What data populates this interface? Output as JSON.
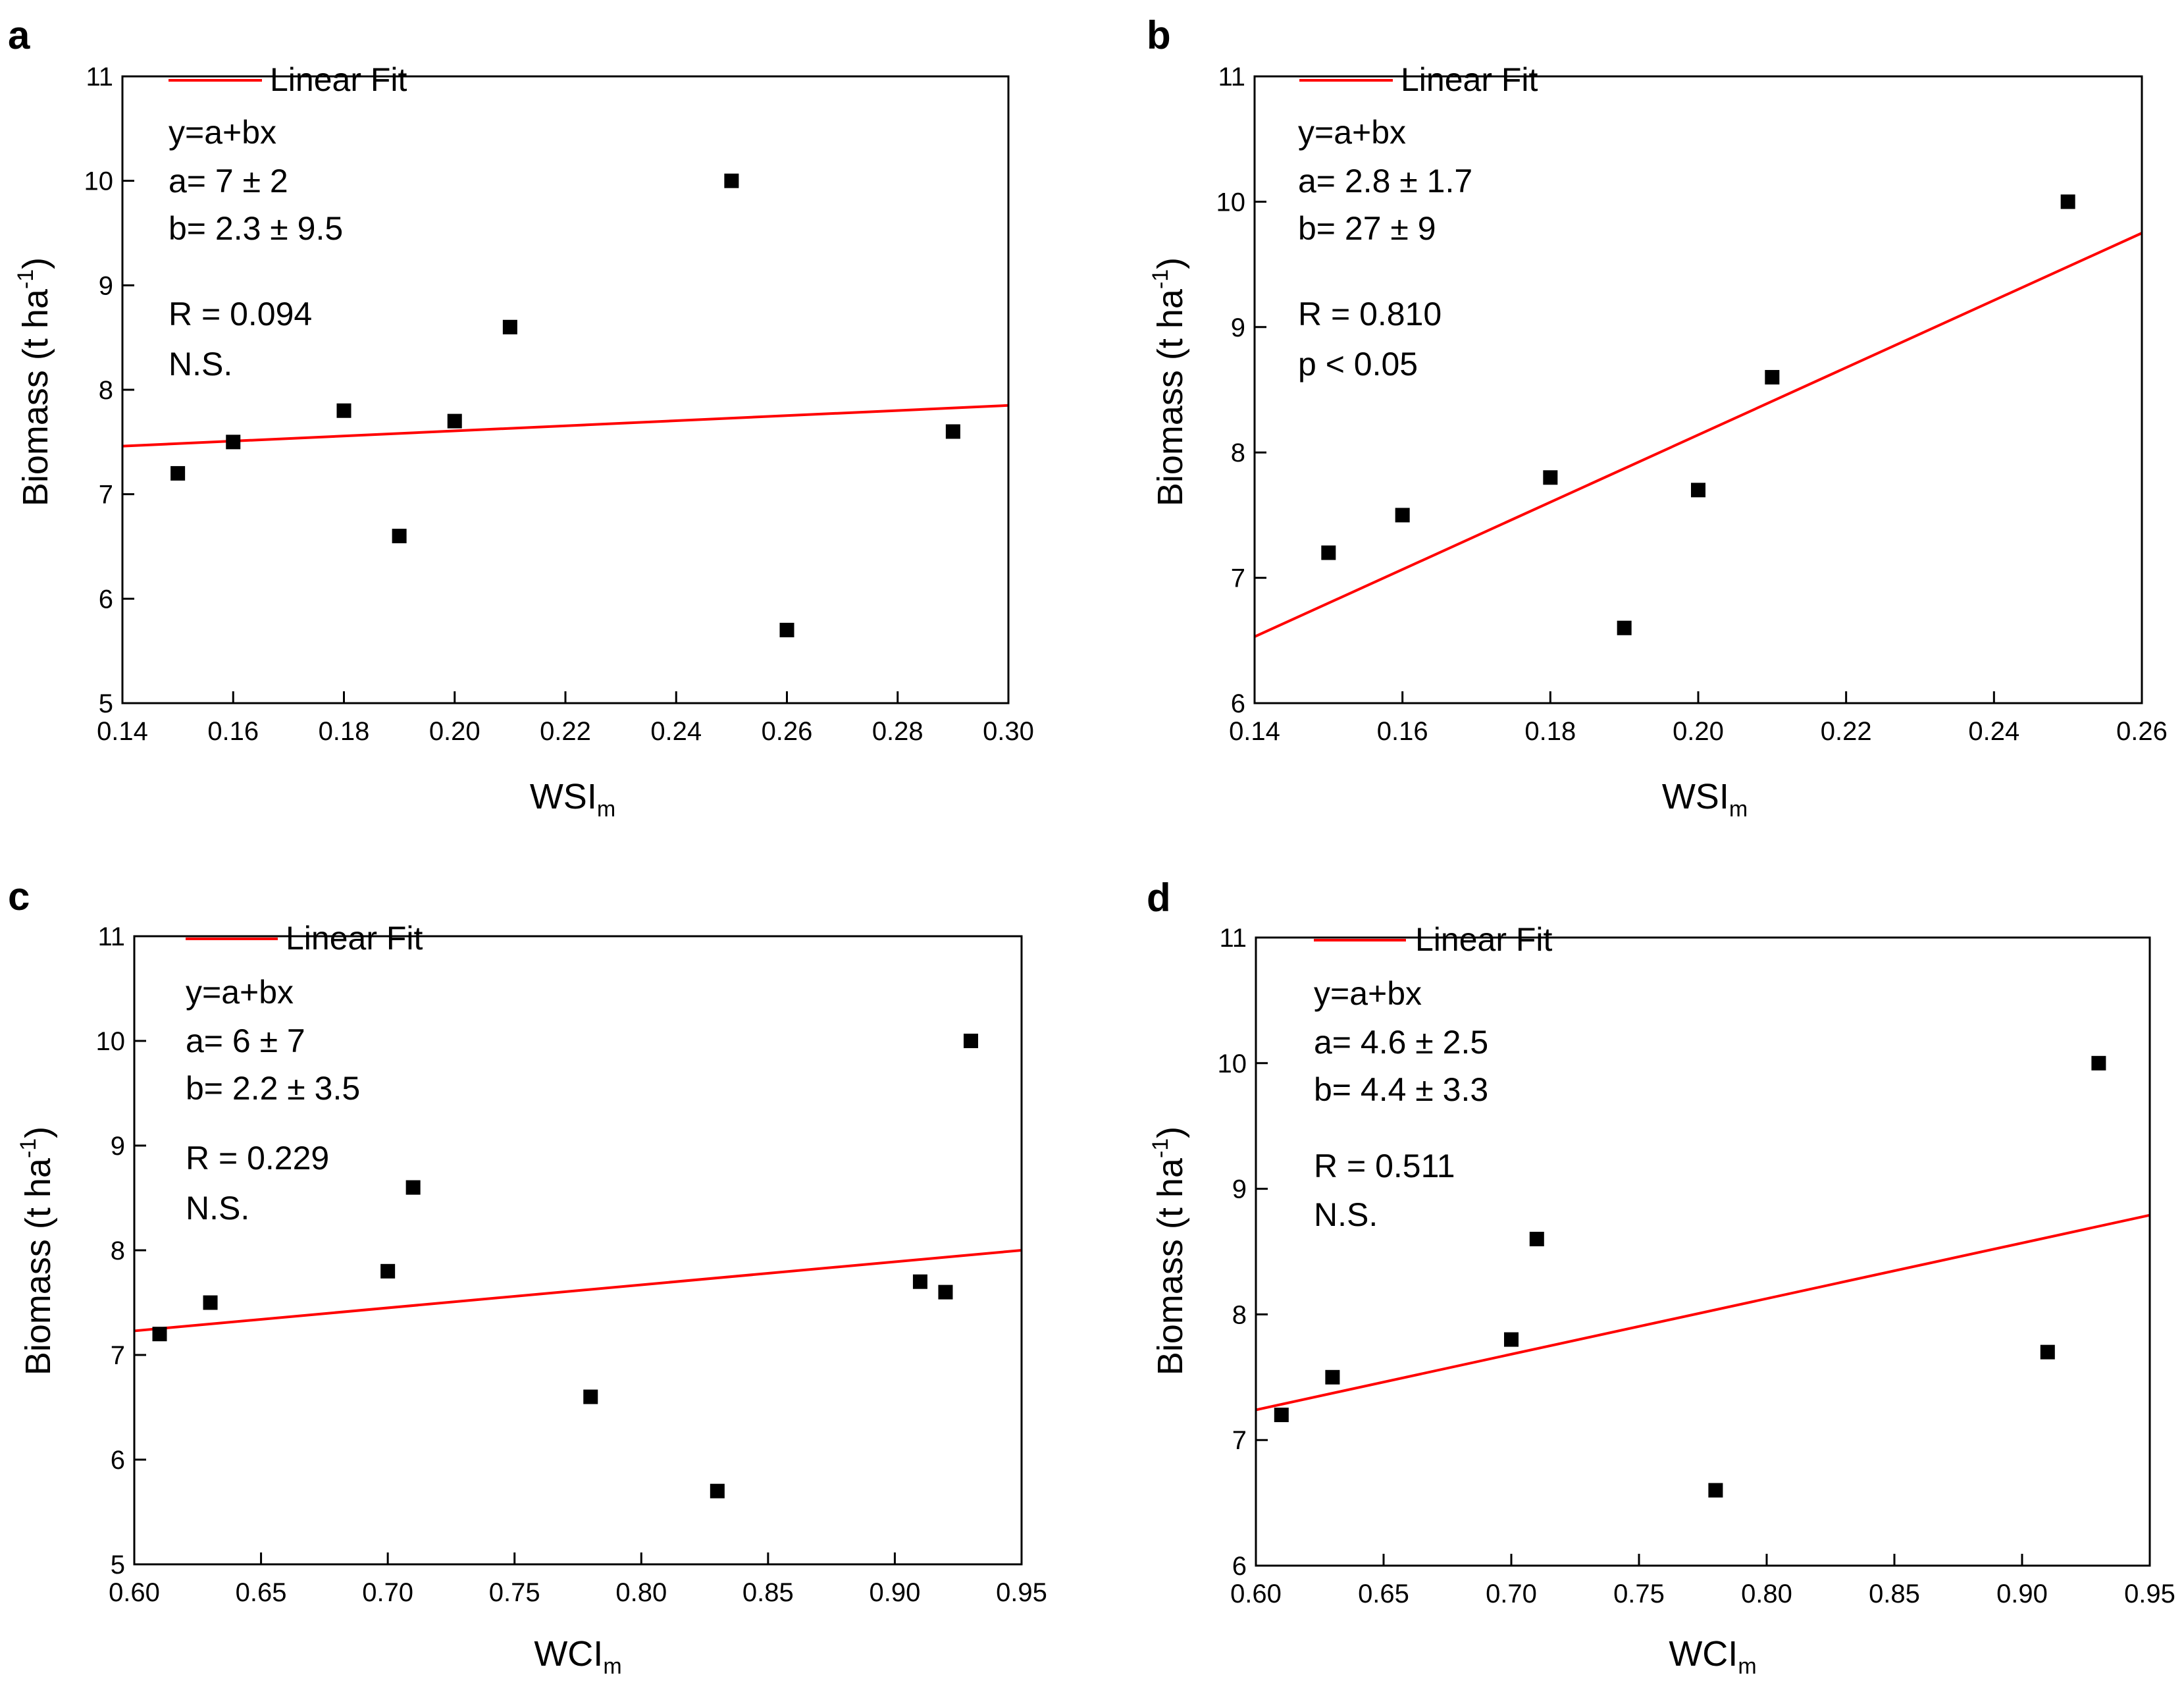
{
  "chart_data": [
    {
      "panel": "a",
      "type": "scatter",
      "xlabel": "WSI",
      "xlabel_sub": "m",
      "ylabel": "Biomass (t ha",
      "ylabel_sup": "-1",
      "ylabel_close": ")",
      "xlim": [
        0.14,
        0.3
      ],
      "ylim": [
        5,
        11
      ],
      "xticks": [
        0.14,
        0.16,
        0.18,
        0.2,
        0.22,
        0.24,
        0.26,
        0.28,
        0.3
      ],
      "xtick_labels": [
        "0.14",
        "0.16",
        "0.18",
        "0.20",
        "0.22",
        "0.24",
        "0.26",
        "0.28",
        "0.30"
      ],
      "yticks": [
        5,
        6,
        7,
        8,
        9,
        10,
        11
      ],
      "ytick_labels": [
        "5",
        "6",
        "7",
        "8",
        "9",
        "10",
        "11"
      ],
      "points": [
        [
          0.15,
          7.2
        ],
        [
          0.16,
          7.5
        ],
        [
          0.18,
          7.8
        ],
        [
          0.19,
          6.6
        ],
        [
          0.2,
          7.7
        ],
        [
          0.21,
          8.6
        ],
        [
          0.25,
          10.0
        ],
        [
          0.26,
          5.7
        ],
        [
          0.29,
          7.6
        ]
      ],
      "fit_line": [
        [
          0.14,
          7.46
        ],
        [
          0.3,
          7.85
        ]
      ],
      "legend": "Linear Fit",
      "annotations": [
        "y=a+bx",
        "a= 7 ± 2",
        "b= 2.3 ± 9.5",
        "R = 0.094",
        "N.S."
      ],
      "colors": {
        "fit": "#ff0000",
        "points": "#000000"
      }
    },
    {
      "panel": "b",
      "type": "scatter",
      "xlabel": "WSI",
      "xlabel_sub": "m",
      "ylabel": "Biomass (t ha",
      "ylabel_sup": "-1",
      "ylabel_close": ")",
      "xlim": [
        0.14,
        0.26
      ],
      "ylim": [
        6,
        11
      ],
      "xticks": [
        0.14,
        0.16,
        0.18,
        0.2,
        0.22,
        0.24,
        0.26
      ],
      "xtick_labels": [
        "0.14",
        "0.16",
        "0.18",
        "0.20",
        "0.22",
        "0.24",
        "0.26"
      ],
      "yticks": [
        6,
        7,
        8,
        9,
        10,
        11
      ],
      "ytick_labels": [
        "6",
        "7",
        "8",
        "9",
        "10",
        "11"
      ],
      "points": [
        [
          0.15,
          7.2
        ],
        [
          0.16,
          7.5
        ],
        [
          0.18,
          7.8
        ],
        [
          0.19,
          6.6
        ],
        [
          0.2,
          7.7
        ],
        [
          0.21,
          8.6
        ],
        [
          0.25,
          10.0
        ]
      ],
      "fit_line": [
        [
          0.14,
          6.53
        ],
        [
          0.26,
          9.75
        ]
      ],
      "legend": "Linear Fit",
      "annotations": [
        "y=a+bx",
        "a=  2.8 ± 1.7",
        "b=   27 ± 9",
        "R = 0.810",
        "p < 0.05"
      ],
      "colors": {
        "fit": "#ff0000",
        "points": "#000000"
      }
    },
    {
      "panel": "c",
      "type": "scatter",
      "xlabel": "WCI",
      "xlabel_sub": "m",
      "ylabel": "Biomass (t ha",
      "ylabel_sup": "-1",
      "ylabel_close": ")",
      "xlim": [
        0.6,
        0.95
      ],
      "ylim": [
        5,
        11
      ],
      "xticks": [
        0.6,
        0.65,
        0.7,
        0.75,
        0.8,
        0.85,
        0.9,
        0.95
      ],
      "xtick_labels": [
        "0.60",
        "0.65",
        "0.70",
        "0.75",
        "0.80",
        "0.85",
        "0.90",
        "0.95"
      ],
      "yticks": [
        5,
        6,
        7,
        8,
        9,
        10,
        11
      ],
      "ytick_labels": [
        "5",
        "6",
        "7",
        "8",
        "9",
        "10",
        "11"
      ],
      "points": [
        [
          0.61,
          7.2
        ],
        [
          0.63,
          7.5
        ],
        [
          0.7,
          7.8
        ],
        [
          0.71,
          8.6
        ],
        [
          0.78,
          6.6
        ],
        [
          0.83,
          5.7
        ],
        [
          0.91,
          7.7
        ],
        [
          0.92,
          7.6
        ],
        [
          0.93,
          10.0
        ]
      ],
      "fit_line": [
        [
          0.6,
          7.23
        ],
        [
          0.95,
          8.0
        ]
      ],
      "legend": "Linear Fit",
      "annotations": [
        "y=a+bx",
        "a= 6 ± 7",
        "b= 2.2 ± 3.5",
        "R = 0.229",
        "N.S."
      ],
      "colors": {
        "fit": "#ff0000",
        "points": "#000000"
      }
    },
    {
      "panel": "d",
      "type": "scatter",
      "xlabel": "WCI",
      "xlabel_sub": "m",
      "ylabel": "Biomass (t ha",
      "ylabel_sup": "-1",
      "ylabel_close": ")",
      "xlim": [
        0.6,
        0.95
      ],
      "ylim": [
        6,
        11
      ],
      "xticks": [
        0.6,
        0.65,
        0.7,
        0.75,
        0.8,
        0.85,
        0.9,
        0.95
      ],
      "xtick_labels": [
        "0.60",
        "0.65",
        "0.70",
        "0.75",
        "0.80",
        "0.85",
        "0.90",
        "0.95"
      ],
      "yticks": [
        6,
        7,
        8,
        9,
        10,
        11
      ],
      "ytick_labels": [
        "6",
        "7",
        "8",
        "9",
        "10",
        "11"
      ],
      "points": [
        [
          0.61,
          7.2
        ],
        [
          0.63,
          7.5
        ],
        [
          0.7,
          7.8
        ],
        [
          0.71,
          8.6
        ],
        [
          0.78,
          6.6
        ],
        [
          0.91,
          7.7
        ],
        [
          0.93,
          10.0
        ]
      ],
      "fit_line": [
        [
          0.6,
          7.24
        ],
        [
          0.95,
          8.79
        ]
      ],
      "legend": "Linear Fit",
      "annotations": [
        "y=a+bx",
        "a=  4.6 ± 2.5",
        "b=  4.4 ± 3.3",
        "R = 0.511",
        "N.S."
      ],
      "colors": {
        "fit": "#ff0000",
        "points": "#000000"
      }
    }
  ]
}
